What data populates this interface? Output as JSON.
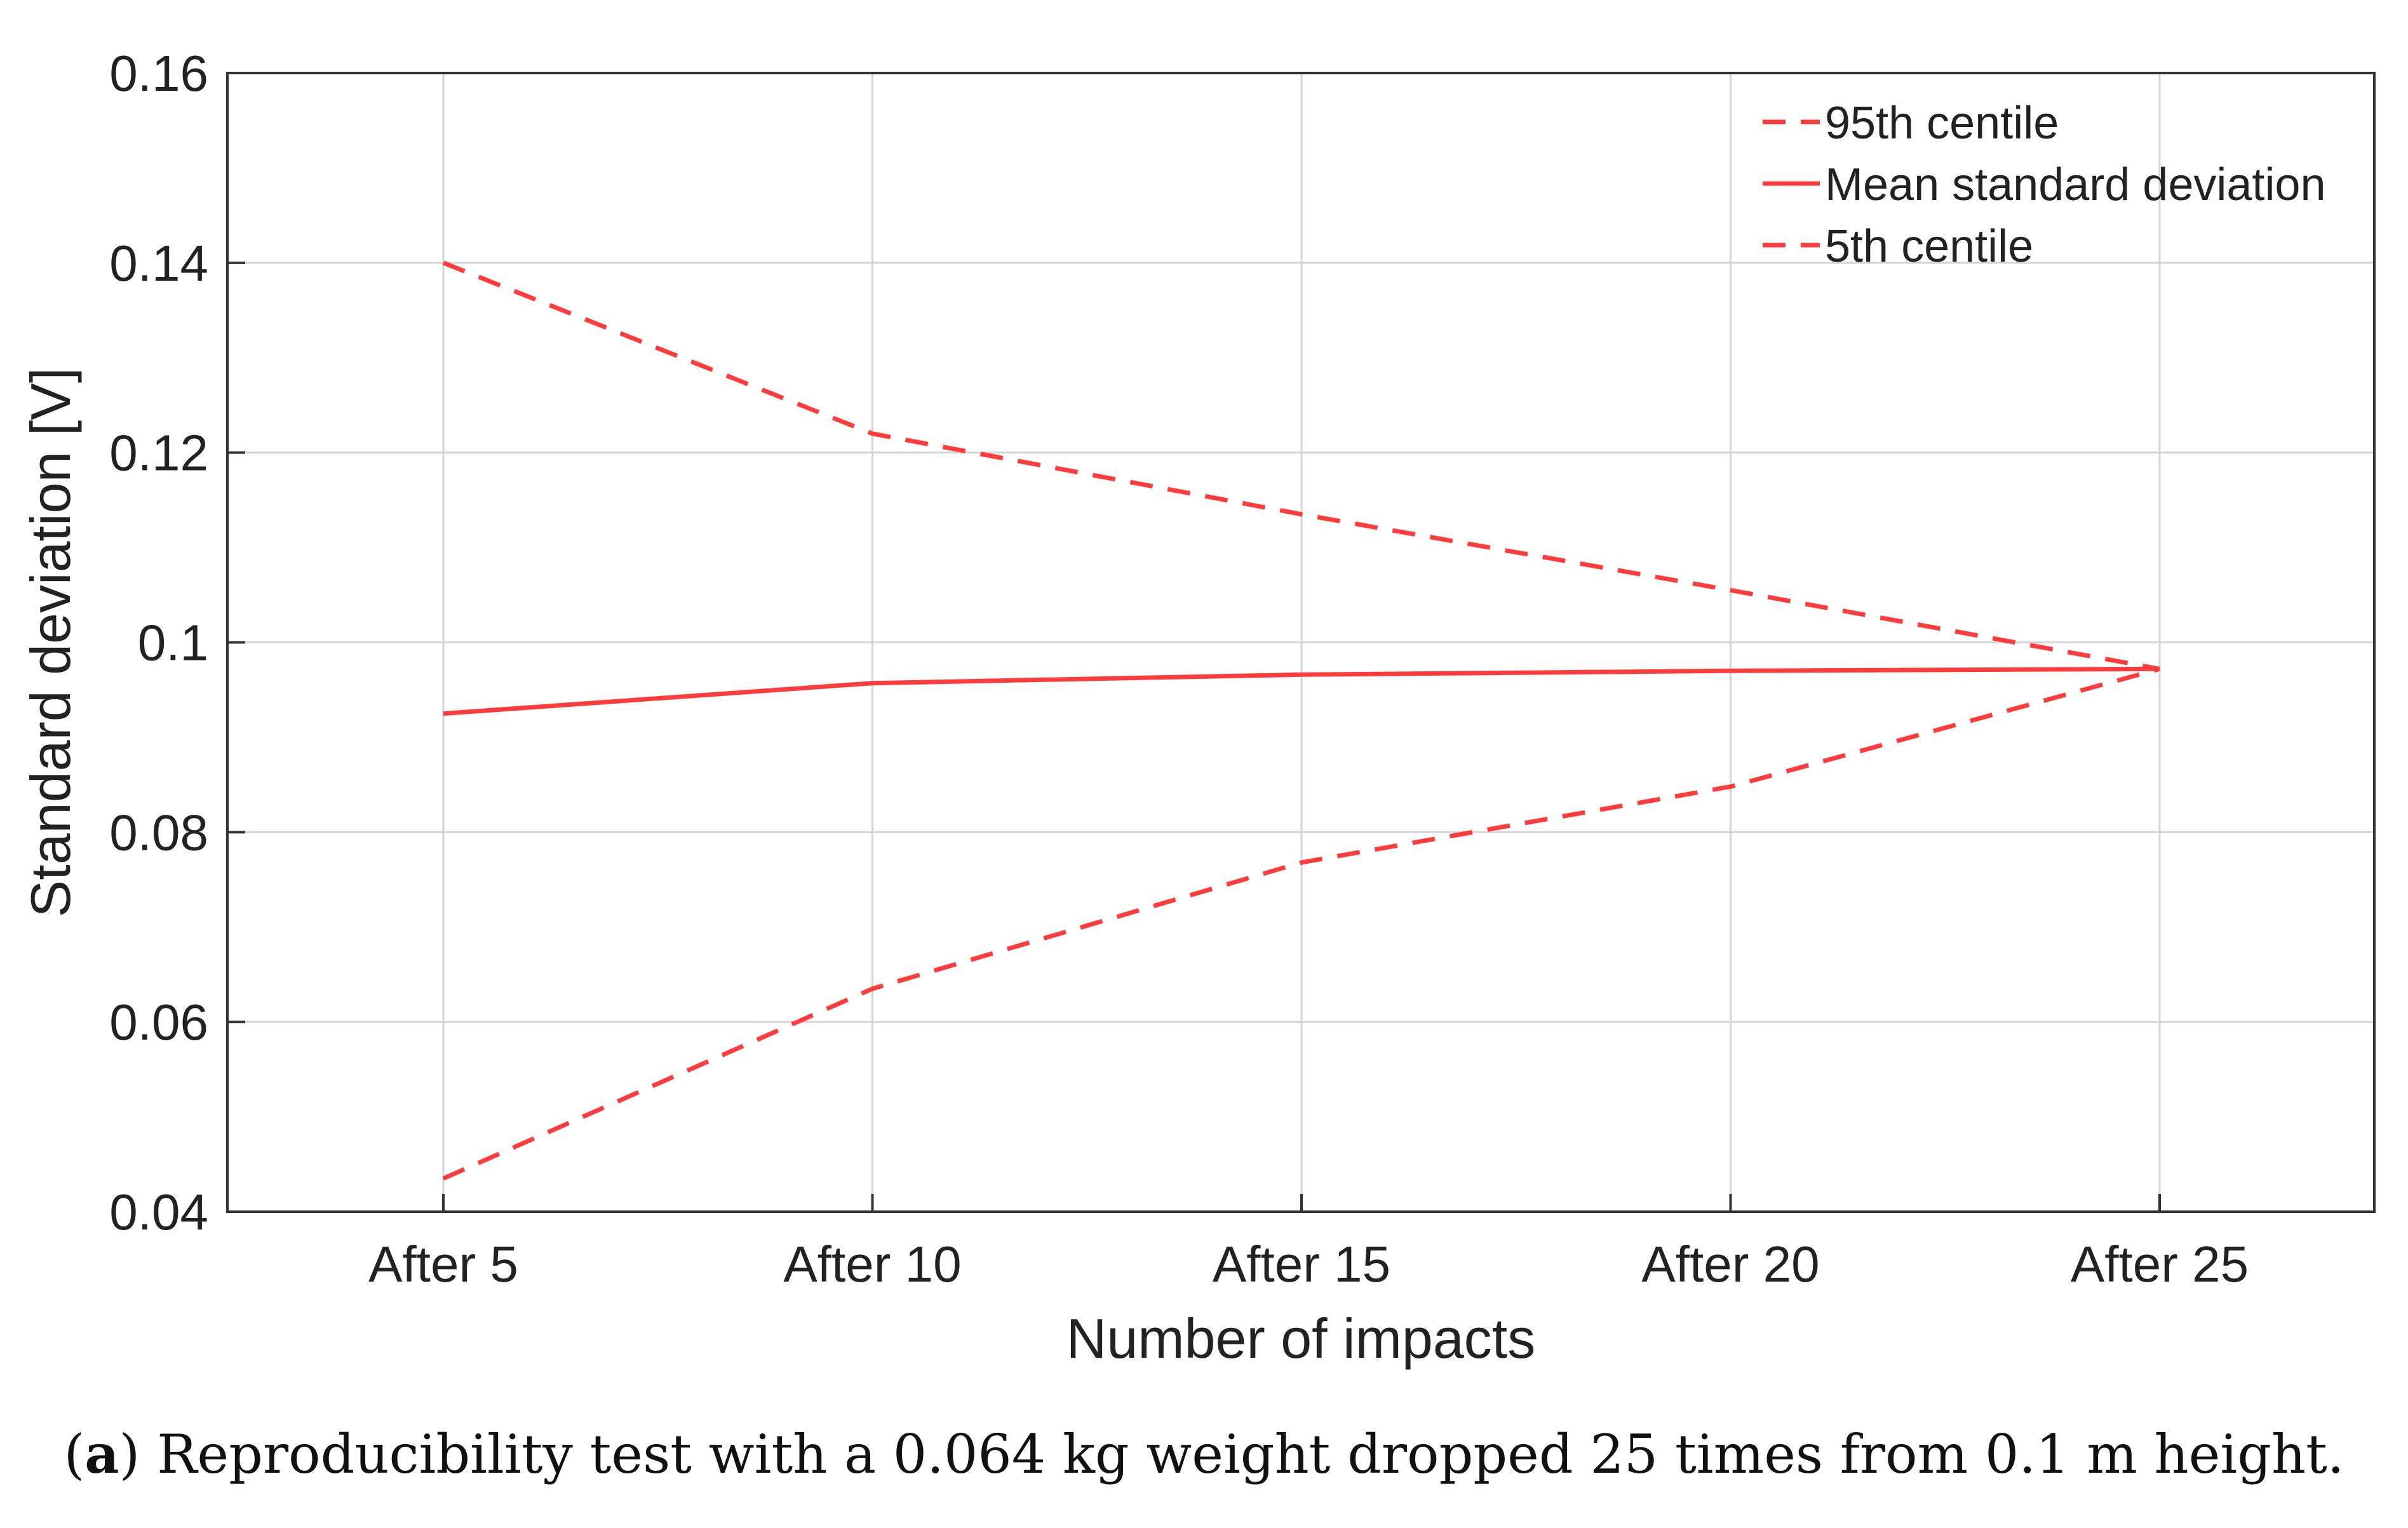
{
  "chart_data": {
    "type": "line",
    "categories": [
      "After 5",
      "After 10",
      "After 15",
      "After 20",
      "After 25"
    ],
    "series": [
      {
        "name": "95th centile",
        "style": "dashed",
        "values": [
          0.14,
          0.122,
          0.1135,
          0.1055,
          0.0972
        ]
      },
      {
        "name": "Mean standard deviation",
        "style": "solid",
        "values": [
          0.0925,
          0.0957,
          0.0966,
          0.097,
          0.0972
        ]
      },
      {
        "name": "5th centile",
        "style": "dashed",
        "values": [
          0.0435,
          0.0635,
          0.0768,
          0.0848,
          0.0972
        ]
      }
    ],
    "xlabel": "Number of impacts",
    "ylabel": "Standard deviation [V]",
    "ylim": [
      0.04,
      0.16
    ],
    "yticks": [
      0.04,
      0.06,
      0.08,
      0.1,
      0.12,
      0.14,
      0.16
    ],
    "ytick_labels": [
      "0.04",
      "0.06",
      "0.08",
      "0.1",
      "0.12",
      "0.14",
      "0.16"
    ],
    "grid": true,
    "legend_position": "top-right",
    "line_color": "#ff3b3b"
  },
  "caption": {
    "label": "a",
    "text": ") Reproducibility test with a 0.064 kg weight dropped 25 times from 0.1 m height."
  }
}
